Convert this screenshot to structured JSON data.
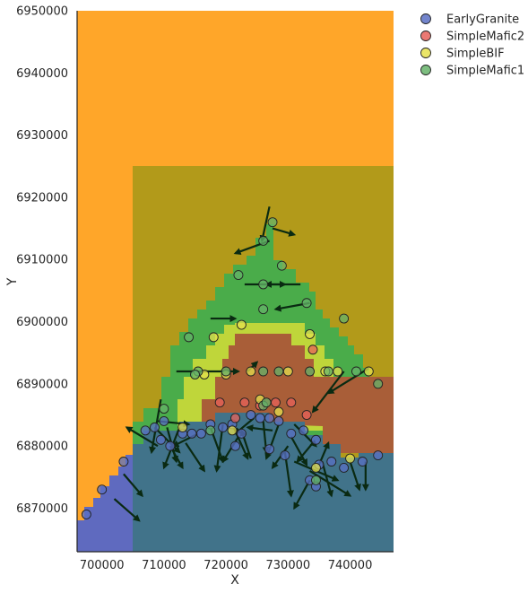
{
  "chart_data": {
    "type": "scatter",
    "title": "",
    "xlabel": "X",
    "ylabel": "Y",
    "xlim": [
      696000,
      747000
    ],
    "ylim": [
      6863000,
      6950000
    ],
    "x_ticks": [
      700000,
      710000,
      720000,
      730000,
      740000
    ],
    "x_tick_labels": [
      "700000",
      "710000",
      "720000",
      "730000",
      "740000"
    ],
    "y_ticks": [
      6870000,
      6880000,
      6890000,
      6900000,
      6910000,
      6920000,
      6930000,
      6940000,
      6950000
    ],
    "y_tick_labels": [
      "6870000",
      "6880000",
      "6890000",
      "6900000",
      "6910000",
      "6920000",
      "6930000",
      "6940000",
      "6950000"
    ],
    "grid": false,
    "legend_position": "outside-top-right",
    "background_colors": {
      "upper_unit": "#ffa629",
      "olive_unit": "#b29a1a",
      "green_unit": "#4aac4a",
      "lime_unit": "#bfd63a",
      "brown_unit": "#a95e38",
      "teal_unit": "#41738a",
      "blue_unit": "#5f6abf"
    },
    "series": [
      {
        "name": "EarlyGranite",
        "color": "#5a70c4",
        "points": [
          [
            697500,
            6869000
          ],
          [
            700000,
            6873000
          ],
          [
            703500,
            6877500
          ],
          [
            710000,
            6884000
          ],
          [
            708500,
            6883000
          ],
          [
            707000,
            6882500
          ],
          [
            711000,
            6880000
          ],
          [
            714500,
            6882000
          ],
          [
            716000,
            6882000
          ],
          [
            717500,
            6883500
          ],
          [
            719500,
            6883000
          ],
          [
            721000,
            6883500
          ],
          [
            722500,
            6882000
          ],
          [
            724000,
            6885000
          ],
          [
            725500,
            6884500
          ],
          [
            727000,
            6884500
          ],
          [
            728500,
            6884000
          ],
          [
            730500,
            6882000
          ],
          [
            732500,
            6882500
          ],
          [
            734500,
            6881000
          ],
          [
            727000,
            6879500
          ],
          [
            721500,
            6880000
          ],
          [
            713000,
            6882000
          ],
          [
            735000,
            6877000
          ],
          [
            737000,
            6877500
          ],
          [
            739000,
            6876500
          ],
          [
            742000,
            6877500
          ],
          [
            744500,
            6878500
          ],
          [
            733500,
            6874500
          ],
          [
            734500,
            6873500
          ],
          [
            709500,
            6881000
          ],
          [
            729500,
            6878500
          ]
        ]
      },
      {
        "name": "SimpleMafic2",
        "color": "#e8625a",
        "points": [
          [
            719000,
            6887000
          ],
          [
            723000,
            6887000
          ],
          [
            725500,
            6886500
          ],
          [
            728000,
            6887000
          ],
          [
            730500,
            6887000
          ],
          [
            733000,
            6885000
          ],
          [
            721500,
            6884500
          ],
          [
            734000,
            6895500
          ]
        ]
      },
      {
        "name": "SimpleBIF",
        "color": "#e6e04e",
        "points": [
          [
            718000,
            6897500
          ],
          [
            722500,
            6899500
          ],
          [
            733500,
            6898000
          ],
          [
            713000,
            6883000
          ],
          [
            725500,
            6887500
          ],
          [
            728500,
            6885500
          ],
          [
            720000,
            6891500
          ],
          [
            724000,
            6892000
          ],
          [
            730000,
            6892000
          ],
          [
            736000,
            6892000
          ],
          [
            738000,
            6892000
          ],
          [
            743000,
            6892000
          ],
          [
            716500,
            6891500
          ],
          [
            721000,
            6882500
          ],
          [
            734500,
            6876500
          ],
          [
            740000,
            6878000
          ]
        ]
      },
      {
        "name": "SimpleMafic1",
        "color": "#66b36a",
        "points": [
          [
            727500,
            6916000
          ],
          [
            726000,
            6913000
          ],
          [
            729000,
            6909000
          ],
          [
            722000,
            6907500
          ],
          [
            726000,
            6906000
          ],
          [
            733000,
            6903000
          ],
          [
            739000,
            6900500
          ],
          [
            726000,
            6902000
          ],
          [
            714000,
            6897500
          ],
          [
            710000,
            6886000
          ],
          [
            715500,
            6892000
          ],
          [
            720000,
            6892000
          ],
          [
            726000,
            6892000
          ],
          [
            728500,
            6892000
          ],
          [
            733500,
            6892000
          ],
          [
            736500,
            6892000
          ],
          [
            741000,
            6892000
          ],
          [
            744500,
            6890000
          ],
          [
            715000,
            6891500
          ],
          [
            726000,
            6886500
          ],
          [
            726500,
            6887000
          ],
          [
            734500,
            6874500
          ],
          [
            717500,
            6882500
          ]
        ]
      }
    ],
    "orientation_arrows": [
      [
        727000,
        6918500,
        725800,
        6913000
      ],
      [
        727500,
        6915000,
        731000,
        6914000
      ],
      [
        727000,
        6913000,
        721500,
        6911000
      ],
      [
        723000,
        6906000,
        729500,
        6906000
      ],
      [
        732000,
        6906000,
        726500,
        6906000
      ],
      [
        733500,
        6903000,
        728000,
        6902000
      ],
      [
        717500,
        6900500,
        721500,
        6900500
      ],
      [
        712000,
        6892000,
        722000,
        6892000
      ],
      [
        723500,
        6892000,
        725000,
        6893500
      ],
      [
        743000,
        6892500,
        736500,
        6888500
      ],
      [
        739000,
        6892000,
        734000,
        6885500
      ],
      [
        709000,
        6884000,
        714000,
        6883500
      ],
      [
        708500,
        6883000,
        712500,
        6879000
      ],
      [
        710500,
        6883000,
        712000,
        6877500
      ],
      [
        709000,
        6880000,
        704000,
        6883000
      ],
      [
        712500,
        6883000,
        710000,
        6876500
      ],
      [
        715500,
        6882000,
        711500,
        6880000
      ],
      [
        713500,
        6880500,
        716500,
        6876000
      ],
      [
        717500,
        6883000,
        719500,
        6877500
      ],
      [
        719500,
        6883500,
        718500,
        6876000
      ],
      [
        721000,
        6883500,
        723500,
        6878000
      ],
      [
        722000,
        6881500,
        719500,
        6877500
      ],
      [
        724500,
        6884500,
        721500,
        6882000
      ],
      [
        726000,
        6884000,
        726500,
        6879000
      ],
      [
        728500,
        6883500,
        726500,
        6878000
      ],
      [
        727500,
        6882500,
        723500,
        6883000
      ],
      [
        731000,
        6883500,
        734500,
        6880000
      ],
      [
        730500,
        6881500,
        733000,
        6877000
      ],
      [
        730000,
        6880000,
        727500,
        6876500
      ],
      [
        729500,
        6879000,
        730500,
        6872000
      ],
      [
        731000,
        6877500,
        738000,
        6874500
      ],
      [
        733500,
        6876000,
        740000,
        6872000
      ],
      [
        733500,
        6874500,
        731000,
        6870000
      ],
      [
        735500,
        6877500,
        737000,
        6872000
      ],
      [
        740000,
        6877500,
        741500,
        6873000
      ],
      [
        742500,
        6877500,
        742500,
        6873000
      ],
      [
        734000,
        6880500,
        731500,
        6877500
      ],
      [
        703500,
        6875500,
        706500,
        6872000
      ],
      [
        702000,
        6871500,
        706000,
        6868000
      ],
      [
        709500,
        6887500,
        708000,
        6879000
      ],
      [
        735000,
        6877000,
        736500,
        6880500
      ],
      [
        724000,
        6878000,
        722500,
        6882500
      ],
      [
        711000,
        6880000,
        713000,
        6876500
      ]
    ]
  }
}
